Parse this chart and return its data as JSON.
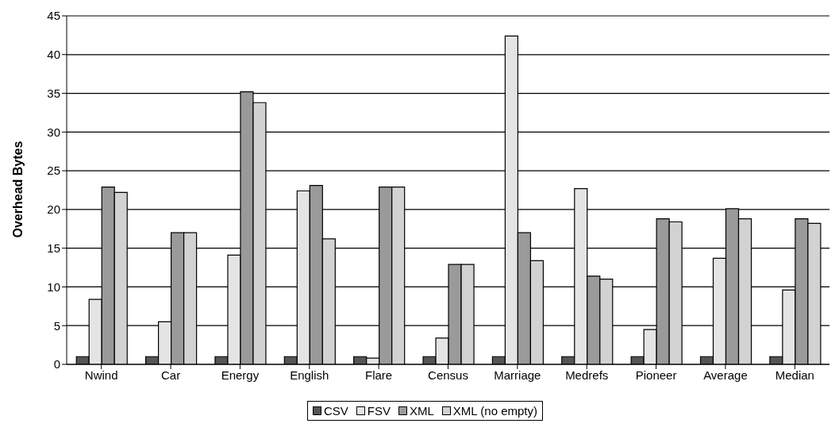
{
  "chart_data": {
    "type": "bar",
    "ylabel": "Overhead Bytes",
    "categories": [
      "Nwind",
      "Car",
      "Energy",
      "English",
      "Flare",
      "Census",
      "Marriage",
      "Medrefs",
      "Pioneer",
      "Average",
      "Median"
    ],
    "series": [
      {
        "name": "CSV",
        "color": "#555555",
        "values": [
          1,
          1,
          1,
          1,
          1,
          1,
          1,
          1,
          1,
          1,
          1
        ]
      },
      {
        "name": "FSV",
        "color": "#e4e4e4",
        "values": [
          8.4,
          5.5,
          14.1,
          22.4,
          0.8,
          3.4,
          42.4,
          22.7,
          4.5,
          13.7,
          9.6
        ]
      },
      {
        "name": "XML",
        "color": "#9a9a9a",
        "values": [
          22.9,
          17,
          35.2,
          23.1,
          22.9,
          12.9,
          17,
          11.4,
          18.8,
          20.1,
          18.8
        ]
      },
      {
        "name": "XML (no empty)",
        "color": "#d2d2d2",
        "values": [
          22.2,
          17,
          33.8,
          16.2,
          22.9,
          12.9,
          13.4,
          11,
          18.4,
          18.8,
          18.2
        ]
      }
    ],
    "ylim": [
      0,
      45
    ],
    "yticks": [
      0,
      5,
      10,
      15,
      20,
      25,
      30,
      35,
      40,
      45
    ],
    "grid": "y",
    "legend": "bottom"
  }
}
